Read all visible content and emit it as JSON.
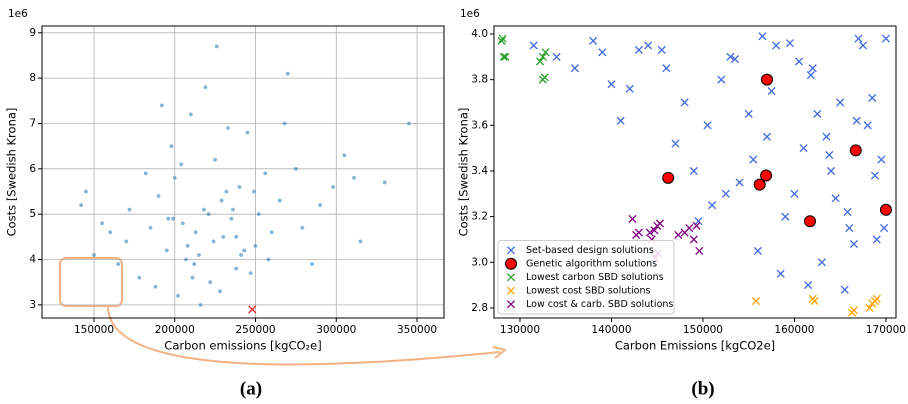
{
  "chart_data": [
    {
      "type": "scatter",
      "xlabel": "Carbon emissions [kgCO₂e]",
      "ylabel": "Costs [Swedish Krona]",
      "y_offset_label": "1e6",
      "panel_label": "(a)",
      "xlim": [
        117800,
        366700
      ],
      "ylim": [
        2.71,
        9.15
      ],
      "xticks": [
        150000,
        200000,
        250000,
        300000,
        350000
      ],
      "yticks": [
        3,
        4,
        5,
        6,
        7,
        8,
        9
      ],
      "grid": true,
      "series": [
        {
          "color": "#1f77b4",
          "marker": "dot",
          "x": [
            205000,
            218000,
            230000,
            195000,
            240000,
            212000,
            225000,
            185000,
            250000,
            265000,
            178000,
            200000,
            235000,
            222000,
            210000,
            245000,
            190000,
            260000,
            275000,
            170000,
            228000,
            215000,
            198000,
            238000,
            252000,
            182000,
            207000,
            232000,
            219000,
            243000,
            160000,
            290000,
            305000,
            285000,
            172000,
            155000,
            145000,
            315000,
            330000,
            268000,
            202000,
            226000,
            213000,
            241000,
            188000,
            256000,
            233000,
            208000,
            221000,
            196000,
            247000,
            279000,
            165000,
            298000,
            238000,
            204000,
            216000,
            229000,
            192000,
            258000,
            311000,
            150000,
            142000,
            345000,
            270000,
            224000,
            211000,
            236000,
            199000,
            249000
          ],
          "values": [
            4.8,
            5.1,
            4.5,
            4.2,
            5.6,
            3.9,
            6.2,
            4.7,
            4.3,
            5.3,
            3.6,
            5.8,
            4.9,
            3.5,
            7.2,
            6.8,
            5.4,
            4.6,
            6.0,
            4.4,
            3.3,
            4.1,
            6.5,
            3.8,
            5.0,
            5.9,
            4.0,
            5.5,
            7.8,
            4.2,
            4.6,
            5.2,
            6.3,
            3.9,
            5.1,
            4.8,
            5.5,
            4.4,
            5.7,
            7.0,
            3.2,
            8.7,
            4.6,
            4.1,
            3.4,
            5.9,
            6.9,
            4.3,
            5.0,
            4.9,
            3.7,
            4.7,
            3.9,
            5.6,
            4.5,
            6.1,
            3.0,
            5.3,
            7.4,
            4.0,
            5.8,
            4.1,
            5.2,
            7.0,
            8.1,
            4.4,
            3.6,
            5.1,
            4.9,
            5.5
          ]
        },
        {
          "color": "#e8201c",
          "marker": "x",
          "x": [
            248000
          ],
          "values": [
            2.9
          ]
        }
      ]
    },
    {
      "type": "scatter",
      "xlabel": "Carbon Emissions [kgCO2e]",
      "ylabel": "Costs [Swedish Krona]",
      "y_offset_label": "1e6",
      "panel_label": "(b)",
      "xlim": [
        127160,
        171100
      ],
      "ylim": [
        2.756,
        4.035
      ],
      "xticks": [
        130000,
        140000,
        150000,
        160000,
        170000
      ],
      "yticks": [
        2.8,
        {
          "value": 3,
          "label": "3.0"
        },
        3.2,
        3.4,
        3.6,
        3.8,
        {
          "value": 4,
          "label": "4.0"
        }
      ],
      "grid": false,
      "legend": "lower left",
      "series": [
        {
          "name": "Set-based design solutions",
          "color": "#4169e1",
          "marker": "x",
          "x": [
            158000,
            162000,
            165000,
            168000,
            169500,
            160000,
            163500,
            166000,
            155000,
            152000,
            167000,
            161000,
            164000,
            159000,
            157500,
            169000,
            154000,
            153000,
            150500,
            148000,
            146000,
            144000,
            141000,
            138000,
            136000,
            134000,
            131500,
            140000,
            143000,
            147000,
            149000,
            151000,
            156000,
            158500,
            161500,
            163000,
            165500,
            166500,
            167500,
            168500,
            170000,
            162500,
            160500,
            157000,
            155500,
            152500,
            149500,
            145500,
            139000,
            142000,
            164500,
            166800,
            168800,
            169800,
            159500,
            161800,
            163800,
            165800,
            153500,
            156500
          ],
          "values": [
            3.95,
            3.85,
            3.7,
            3.6,
            3.45,
            3.3,
            3.55,
            3.15,
            3.65,
            3.8,
            3.98,
            3.5,
            3.4,
            3.2,
            3.75,
            3.1,
            3.35,
            3.9,
            3.6,
            3.7,
            3.85,
            3.95,
            3.62,
            3.97,
            3.85,
            3.9,
            3.95,
            3.78,
            3.93,
            3.52,
            3.4,
            3.25,
            3.05,
            2.95,
            2.9,
            3.0,
            2.88,
            3.08,
            3.95,
            3.72,
            3.98,
            3.65,
            3.88,
            3.55,
            3.45,
            3.3,
            3.18,
            3.93,
            3.92,
            3.76,
            3.28,
            3.62,
            3.38,
            3.15,
            3.96,
            3.82,
            3.47,
            3.22,
            3.89,
            3.99
          ]
        },
        {
          "name": "Genetic algorithm solutions",
          "color": "#ff0000",
          "marker": "o",
          "x": [
            146200,
            157000,
            156900,
            156200,
            161700,
            166700,
            170000
          ],
          "values": [
            3.37,
            3.8,
            3.38,
            3.34,
            3.18,
            3.49,
            3.23
          ]
        },
        {
          "name": "Lowest carbon SBD solutions",
          "color": "#2ca02c",
          "marker": "x",
          "x": [
            128000,
            128100,
            128200,
            128400,
            132200,
            132500,
            132800,
            132500,
            132700
          ],
          "values": [
            3.97,
            3.98,
            3.9,
            3.9,
            3.88,
            3.9,
            3.92,
            3.8,
            3.81
          ]
        },
        {
          "name": "Lowest cost SBD solutions",
          "color": "#ffa500",
          "marker": "x",
          "x": [
            155800,
            162000,
            162200,
            166300,
            166500,
            168200,
            168500,
            168800,
            169000
          ],
          "values": [
            2.83,
            2.84,
            2.83,
            2.78,
            2.79,
            2.8,
            2.82,
            2.83,
            2.84
          ]
        },
        {
          "name": "Low cost & carb. SBD solutions",
          "color": "#800080",
          "marker": "x",
          "x": [
            142300,
            142700,
            143000,
            144200,
            144400,
            144700,
            145000,
            145300,
            144800,
            147300,
            148000,
            148500,
            149000,
            149300,
            149600,
            145100
          ],
          "values": [
            3.19,
            3.12,
            3.13,
            3.13,
            3.1,
            3.14,
            3.16,
            3.17,
            3.02,
            3.12,
            3.13,
            3.15,
            3.1,
            3.16,
            3.05,
            3.04
          ]
        }
      ]
    }
  ]
}
